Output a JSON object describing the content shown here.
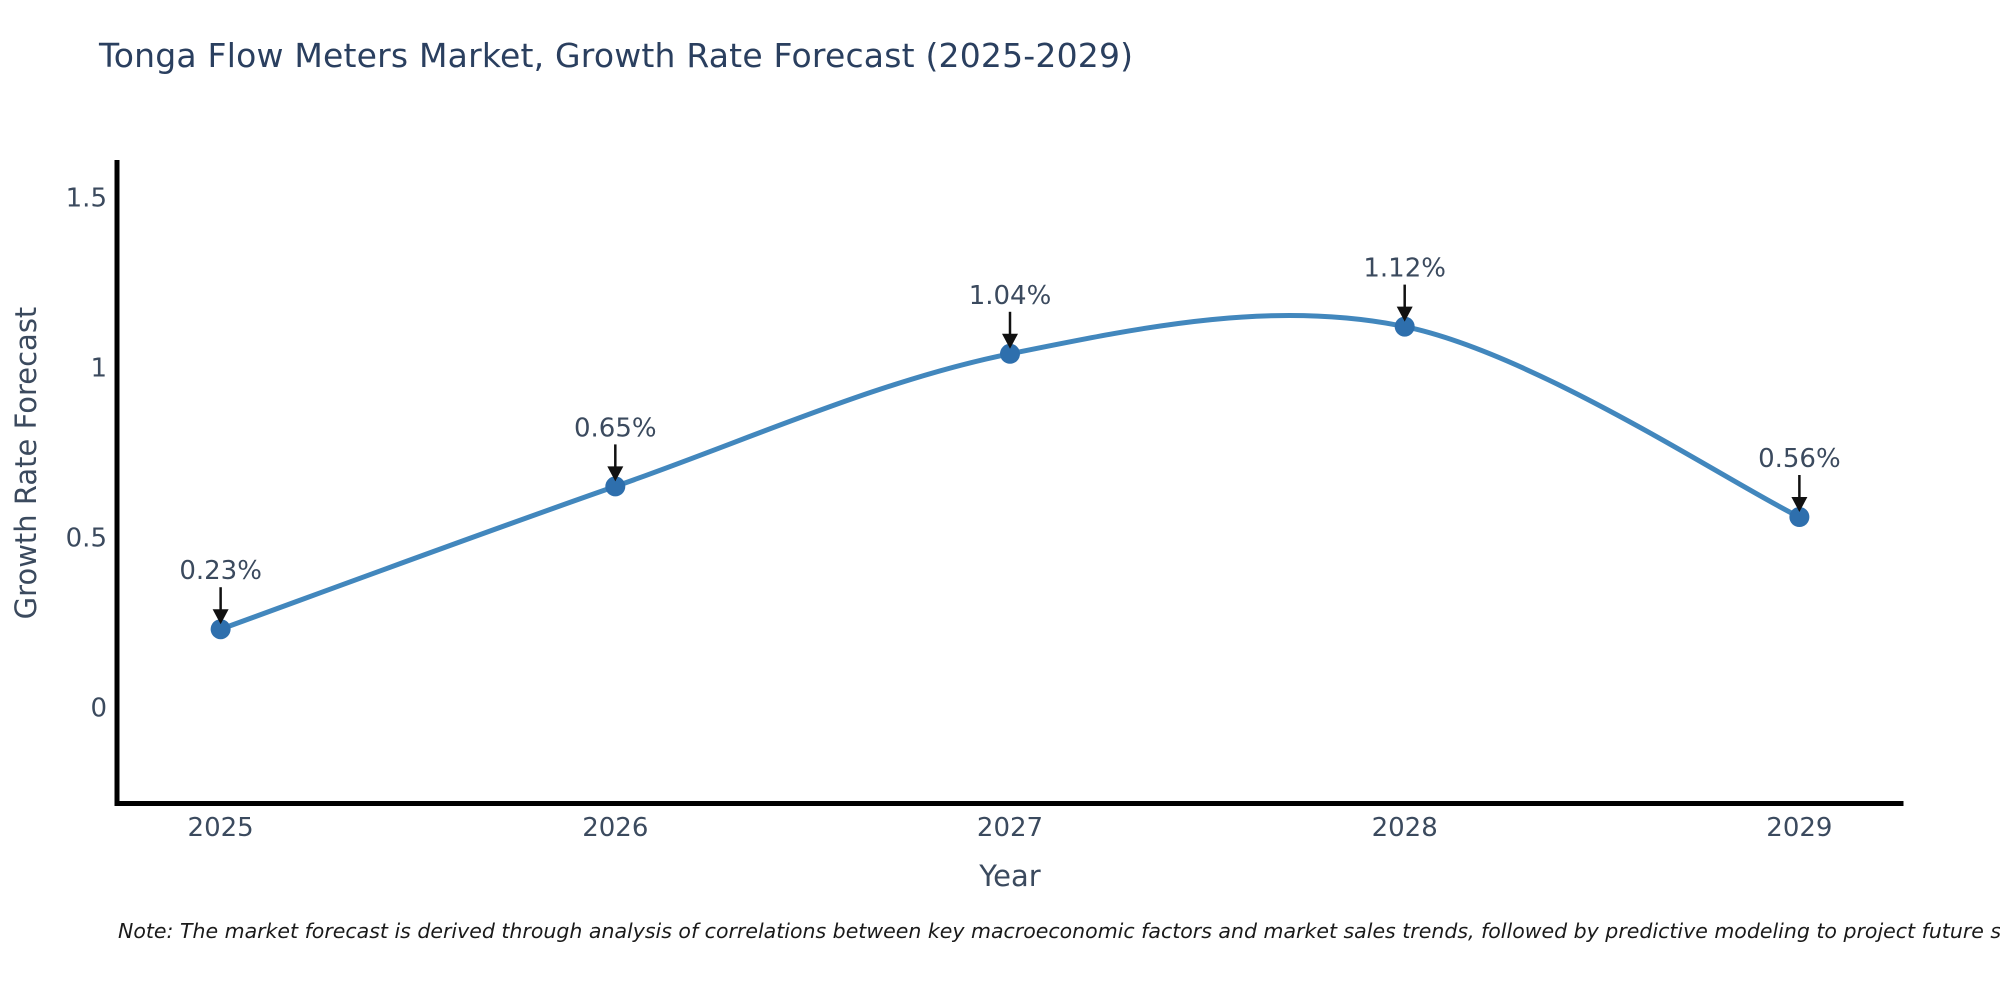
{
  "chart": {
    "title": "Tonga Flow Meters Market, Growth Rate Forecast (2025-2029)"
  },
  "note": "Note: The market forecast is derived through analysis of correlations between key macroeconomic factors and market sales trends, followed by predictive modeling to project future sales",
  "chart_data": {
    "type": "line",
    "title": "Tonga Flow Meters Market, Growth Rate Forecast (2025-2029)",
    "xlabel": "Year",
    "ylabel": "Growth Rate Forecast",
    "x": [
      2025,
      2026,
      2027,
      2028,
      2029
    ],
    "values": [
      0.23,
      0.65,
      1.04,
      1.12,
      0.56
    ],
    "point_labels": [
      "0.23%",
      "0.65%",
      "1.04%",
      "1.12%",
      "0.56%"
    ],
    "yticks": [
      0,
      0.5,
      1,
      1.5
    ],
    "ytick_labels": [
      "0",
      "0.5",
      "1",
      "1.5"
    ],
    "xlim": [
      2024.74,
      2029.26
    ],
    "ylim": [
      -0.29,
      1.61
    ],
    "line_shape": "spline",
    "grid": false,
    "legend": "none",
    "colors": {
      "line": "#4287bd",
      "marker": "#2e6fad",
      "arrow": "#111111",
      "title": "#2a3f5f",
      "tick": "#3b4a5e",
      "axis_title": "#3b4a5e",
      "note": "#1a1a1a",
      "spine": "#000000",
      "background": "#ffffff"
    }
  }
}
